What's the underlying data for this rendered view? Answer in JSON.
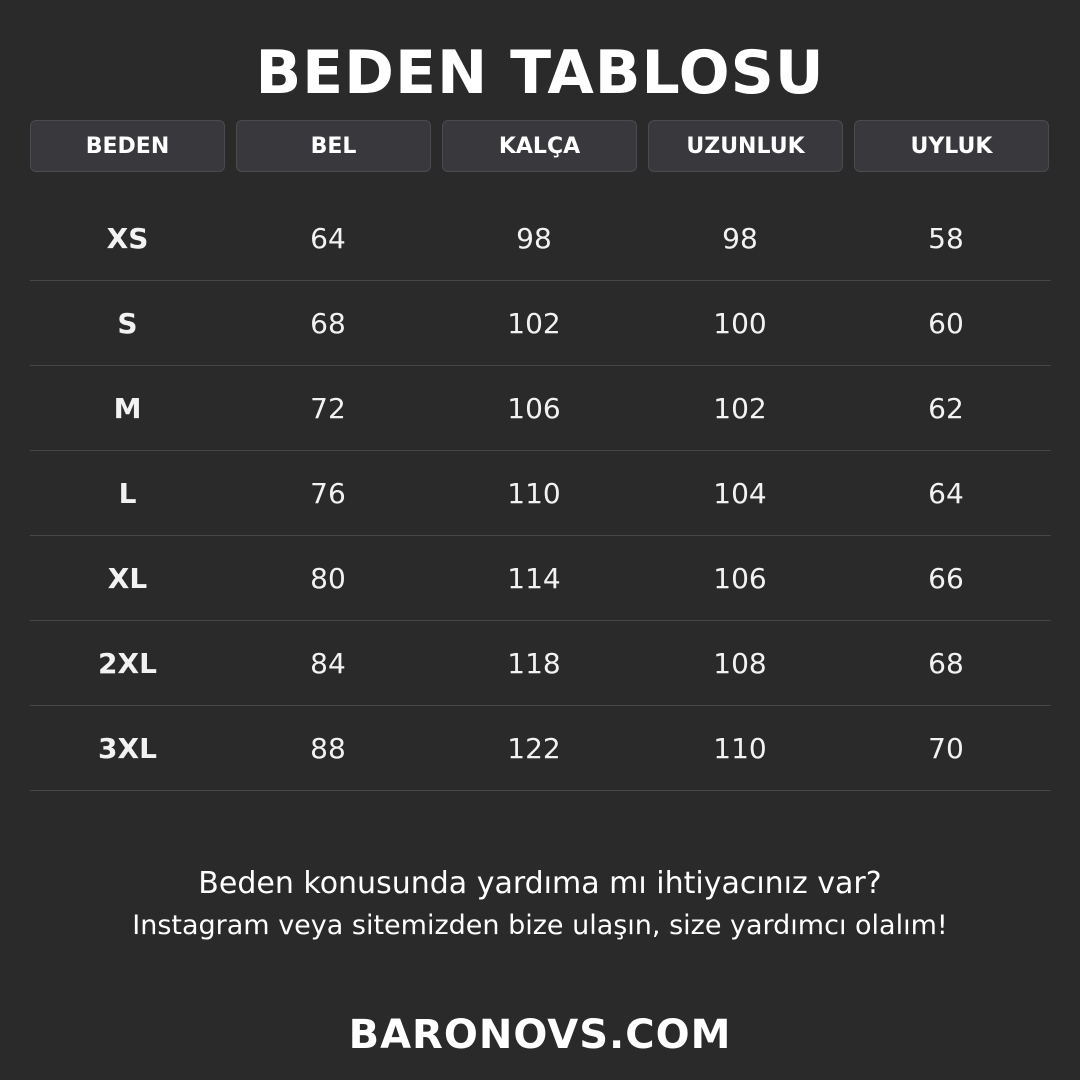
{
  "title": "BEDEN TABLOSU",
  "headers": [
    "BEDEN",
    "BEL",
    "KALÇA",
    "UZUNLUK",
    "UYLUK"
  ],
  "rows": [
    [
      "XS",
      "64",
      "98",
      "98",
      "58"
    ],
    [
      "S",
      "68",
      "102",
      "100",
      "60"
    ],
    [
      "M",
      "72",
      "106",
      "102",
      "62"
    ],
    [
      "L",
      "76",
      "110",
      "104",
      "64"
    ],
    [
      "XL",
      "80",
      "114",
      "106",
      "66"
    ],
    [
      "2XL",
      "84",
      "118",
      "108",
      "68"
    ],
    [
      "3XL",
      "88",
      "122",
      "110",
      "70"
    ]
  ],
  "help_line1": "Beden konusunda yardıma mı ihtiyacınız var?",
  "help_line2": "Instagram veya sitemizden bize ulaşın, size yardımcı olalım!",
  "brand": "BARONOVS.COM",
  "colors": {
    "background": "#2a2a2a",
    "header_bg": "#38383d",
    "text": "#ffffff"
  }
}
